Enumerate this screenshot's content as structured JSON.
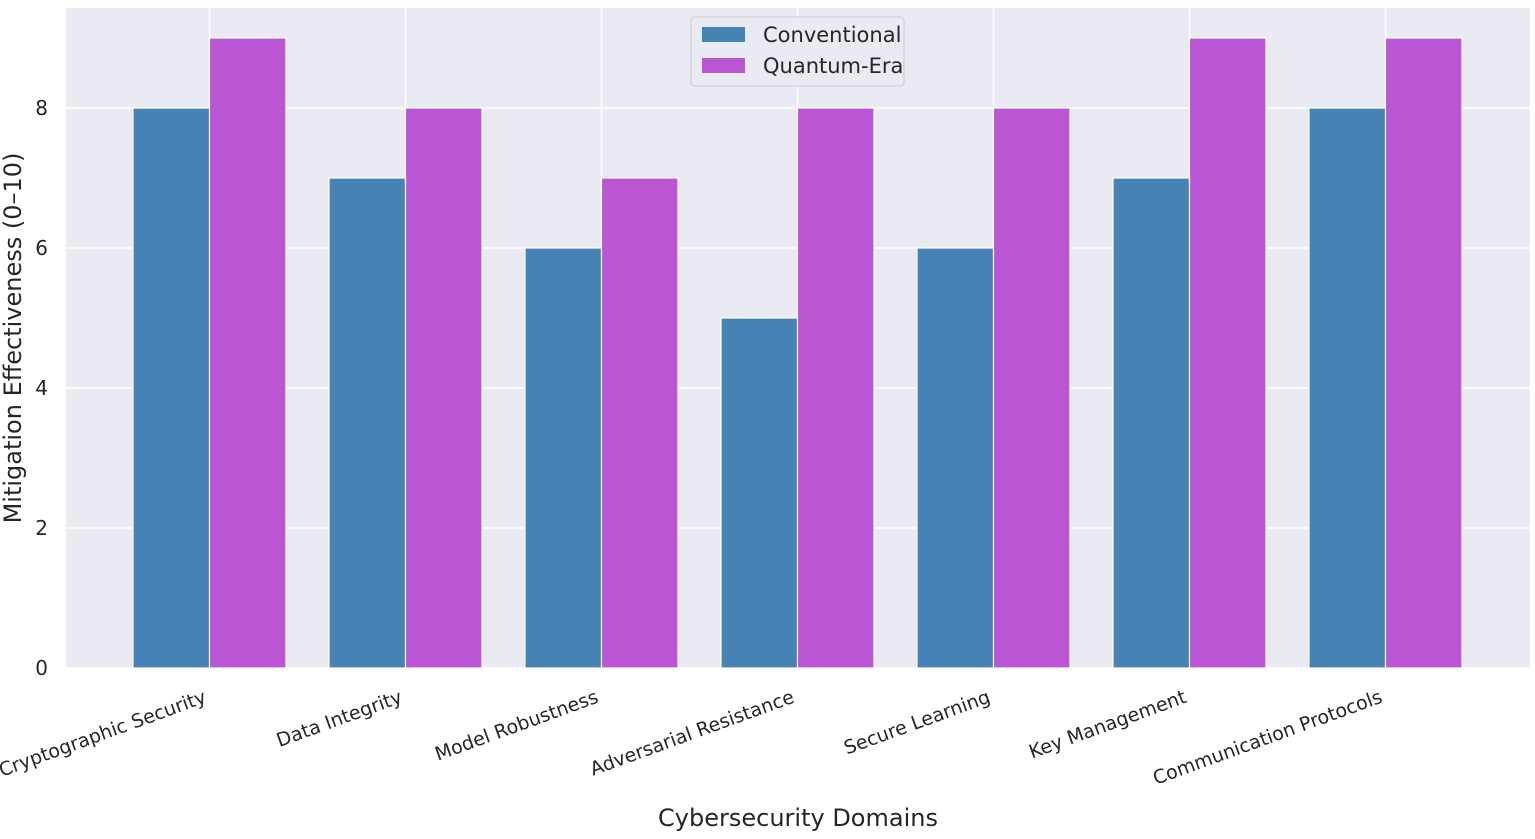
{
  "chart_data": {
    "type": "bar",
    "title": "",
    "xlabel": "Cybersecurity Domains",
    "ylabel": "Mitigation Effectiveness (0–10)",
    "ylim": [
      0,
      9.45
    ],
    "yticks": [
      0,
      2,
      4,
      6,
      8
    ],
    "grid": true,
    "legend_position": "top-center",
    "categories": [
      "Cryptographic Security",
      "Data Integrity",
      "Model Robustness",
      "Adversarial Resistance",
      "Secure Learning",
      "Key Management",
      "Communication Protocols"
    ],
    "series": [
      {
        "name": "Conventional",
        "color": "#4682b4",
        "values": [
          8,
          7,
          6,
          5,
          6,
          7,
          8
        ]
      },
      {
        "name": "Quantum-Era",
        "color": "#ba55d3",
        "values": [
          9,
          8,
          7,
          8,
          8,
          9,
          9
        ]
      }
    ]
  }
}
